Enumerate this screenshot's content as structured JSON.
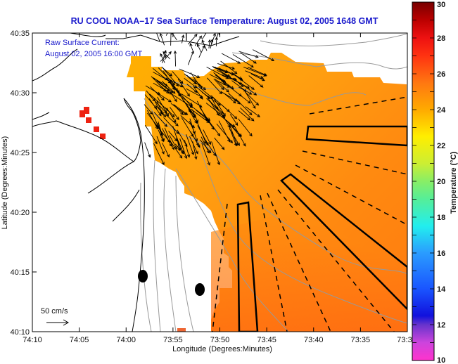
{
  "chart_data": {
    "type": "heatmap",
    "title": "RU COOL  NOAA–17  Sea Surface Temperature:  August 02, 2005 1648 GMT",
    "annotation": {
      "line1": "Raw Surface Current:",
      "line2": "August 02, 2005 16:00 GMT"
    },
    "scale_vector": {
      "label": "50 cm/s",
      "magnitude_cm_s": 50
    },
    "xlabel": "Longitude (Degrees:Minutes)",
    "ylabel": "Latitude (Degrees:Minutes)",
    "x_ticks": [
      "74:10",
      "74:05",
      "74:00",
      "73:55",
      "73:50",
      "73:45",
      "73:40",
      "73:35",
      "73:3"
    ],
    "y_ticks": [
      "40:35",
      "40:30",
      "40:25",
      "40:20",
      "40:15",
      "40:10"
    ],
    "xlim_minutes_west": [
      70,
      30
    ],
    "ylim_minutes_north": [
      10,
      35
    ],
    "colorbar": {
      "label": "Temperature (°C)",
      "range": [
        10,
        30
      ],
      "ticks": [
        "30",
        "28",
        "26",
        "24",
        "22",
        "20",
        "18",
        "16",
        "14",
        "12",
        "10"
      ],
      "stops": [
        {
          "value": 10,
          "color": "#ff33cc"
        },
        {
          "value": 11,
          "color": "#cc44dd"
        },
        {
          "value": 12,
          "color": "#6633cc"
        },
        {
          "value": 12.5,
          "color": "#1111dd"
        },
        {
          "value": 14,
          "color": "#1a55ff"
        },
        {
          "value": 16,
          "color": "#2a9cff"
        },
        {
          "value": 17.5,
          "color": "#22eeee"
        },
        {
          "value": 19,
          "color": "#55ee99"
        },
        {
          "value": 20,
          "color": "#88ee66"
        },
        {
          "value": 21,
          "color": "#ccee33"
        },
        {
          "value": 22.5,
          "color": "#ffee00"
        },
        {
          "value": 24,
          "color": "#ffaa00"
        },
        {
          "value": 25.5,
          "color": "#ff7711"
        },
        {
          "value": 27,
          "color": "#ff3311"
        },
        {
          "value": 28,
          "color": "#ee1111"
        },
        {
          "value": 29,
          "color": "#bb0000"
        },
        {
          "value": 30,
          "color": "#770000"
        }
      ]
    },
    "sst_field": {
      "dominant_range_c": [
        24.5,
        26.5
      ],
      "nearshore_south_c": 26.5,
      "north_plume_c": 24.0
    },
    "land_markers": {
      "red_squares_c": 28
    }
  }
}
